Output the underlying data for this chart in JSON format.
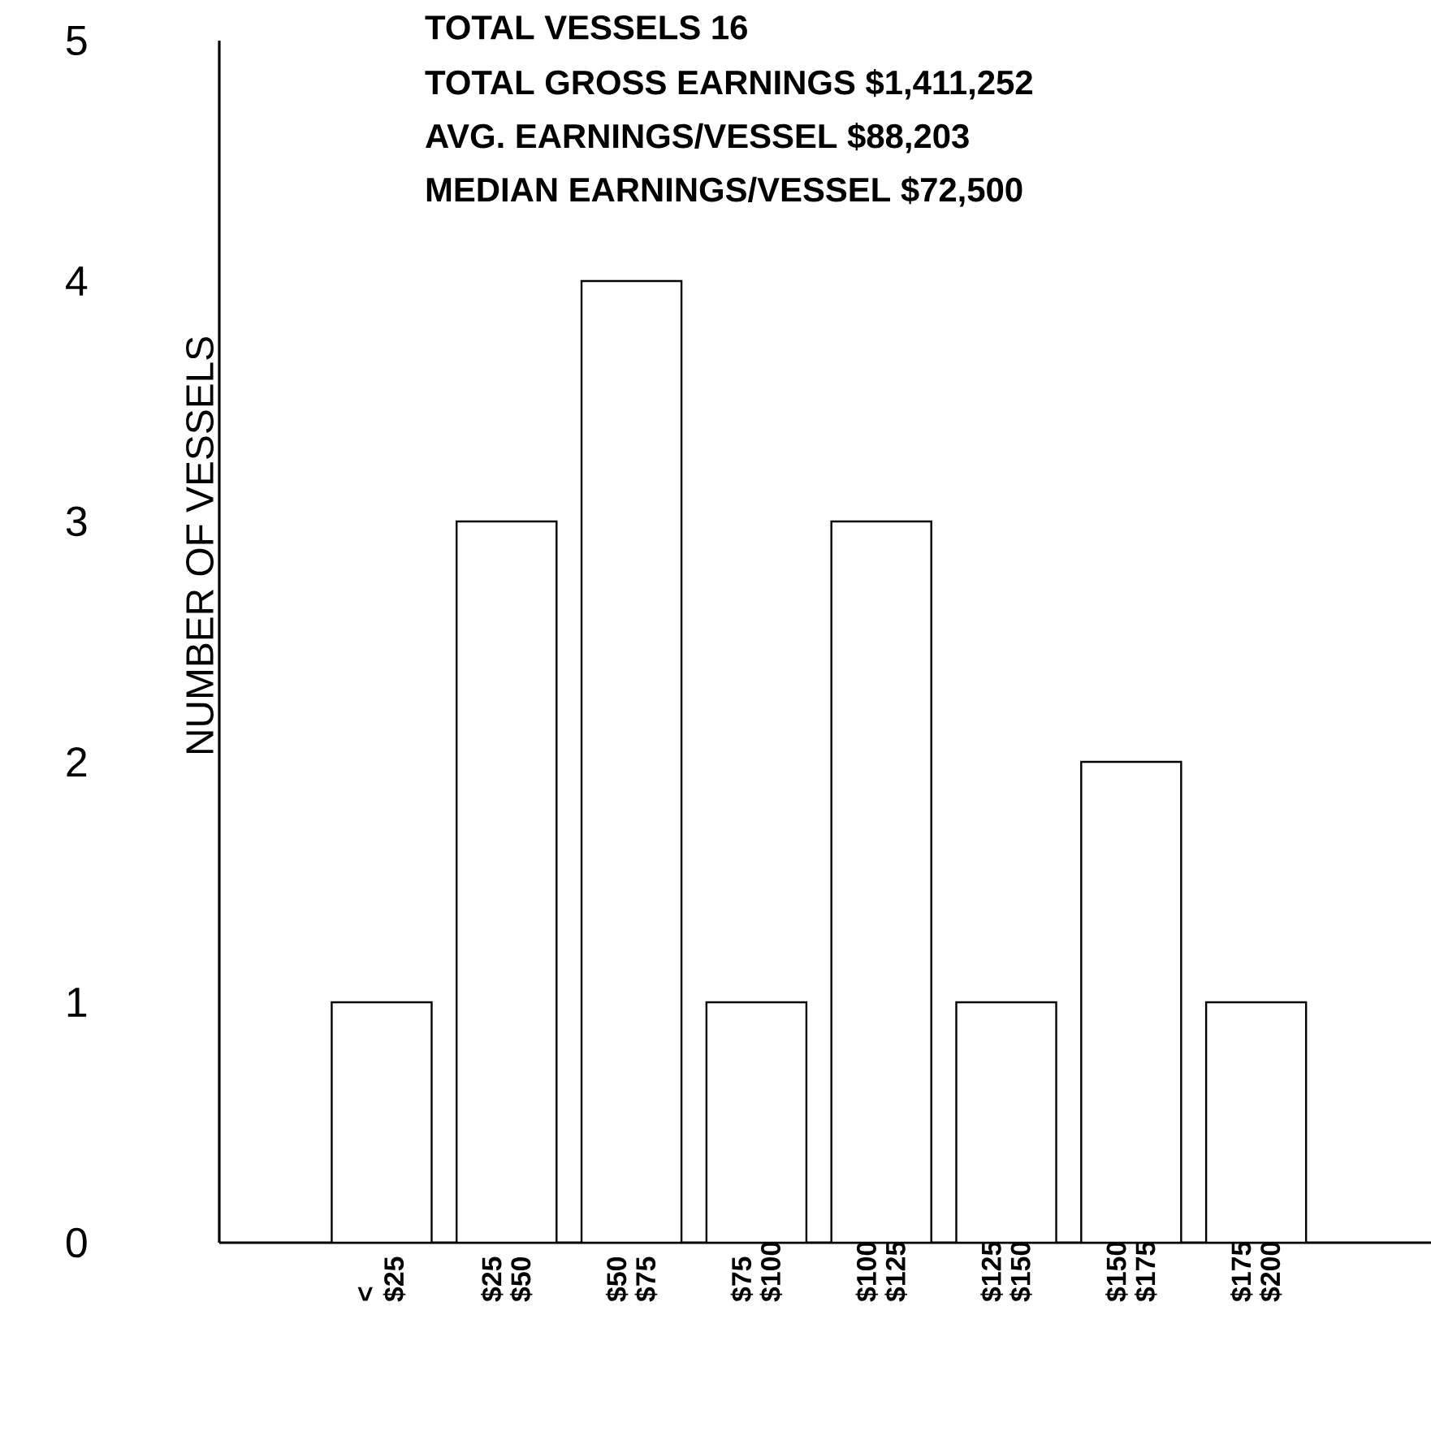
{
  "chart_data": {
    "type": "bar",
    "categories": [
      "< $25",
      "$25 $50",
      "$50 $75",
      "$75 $100",
      "$100 $125",
      "$125 $150",
      "$150 $175",
      "$175 $200"
    ],
    "values": [
      1,
      3,
      4,
      1,
      3,
      1,
      2,
      1
    ],
    "color": "#ffffff",
    "ylabel": "NUMBER OF VESSELS",
    "ylim": [
      0,
      5
    ],
    "yticks": [
      0,
      1,
      2,
      3,
      4,
      5
    ],
    "annotations": [
      "TOTAL VESSELS 16",
      "TOTAL GROSS EARNINGS $1,411,252",
      "AVG. EARNINGS/VESSEL $88,203",
      "MEDIAN EARNINGS/VESSEL $72,500"
    ]
  }
}
